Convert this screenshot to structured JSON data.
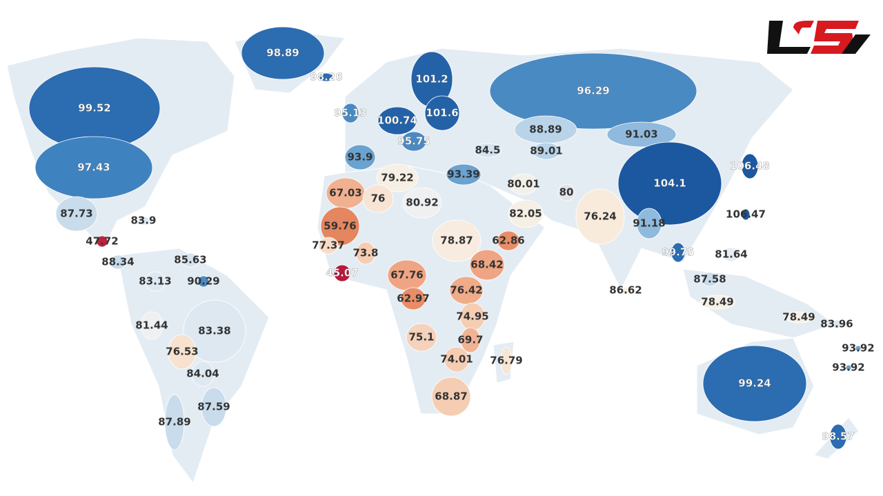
{
  "map": {
    "labels": [
      {
        "value": 98.89,
        "color": "#2c6cb0"
      },
      {
        "value": 98.26,
        "color": "#2c6cb0"
      },
      {
        "value": 99.52,
        "color": "#2c6cb0"
      },
      {
        "value": 97.43,
        "color": "#3f82c0"
      },
      {
        "value": 101.2,
        "color": "#2462a8"
      },
      {
        "value": 96.29,
        "color": "#4a8ac3"
      },
      {
        "value": 95.13,
        "color": "#4a8ac3"
      },
      {
        "value": 101.6,
        "color": "#2462a8"
      },
      {
        "value": 100.74,
        "color": "#2462a8"
      },
      {
        "value": 95.75,
        "color": "#4a8ac3"
      },
      {
        "value": 88.89,
        "color": "#b9d3e8"
      },
      {
        "value": 91.03,
        "color": "#8fbadd"
      },
      {
        "value": 84.5,
        "color": "#d4e3ef"
      },
      {
        "value": 89.01,
        "color": "#b9d3e8"
      },
      {
        "value": 93.9,
        "color": "#6aa2d0"
      },
      {
        "value": 106.48,
        "color": "#1c58a0"
      },
      {
        "value": 104.1,
        "color": "#1c58a0"
      },
      {
        "value": 93.39,
        "color": "#6aa2d0"
      },
      {
        "value": 79.22,
        "color": "#f6efe3"
      },
      {
        "value": 80.01,
        "color": "#f3f0ea"
      },
      {
        "value": 80,
        "color": "#e1e4e8"
      },
      {
        "value": 67.03,
        "color": "#f1b08f"
      },
      {
        "value": 76,
        "color": "#f7e4d4"
      },
      {
        "value": 80.92,
        "color": "#eef0f1"
      },
      {
        "value": 82.05,
        "color": "#f5efe5"
      },
      {
        "value": 76.24,
        "color": "#f8ebdc"
      },
      {
        "value": 87.73,
        "color": "#c8dcec"
      },
      {
        "value": 83.9,
        "color": "#dce7f0"
      },
      {
        "value": 106.47,
        "color": "#1c58a0"
      },
      {
        "value": 91.18,
        "color": "#8fbadd"
      },
      {
        "value": 59.76,
        "color": "#e4865f"
      },
      {
        "value": 47.72,
        "color": "#c0223b"
      },
      {
        "value": 62.86,
        "color": "#e98d66"
      },
      {
        "value": 78.87,
        "color": "#f7ecdf"
      },
      {
        "value": 77.37,
        "color": "#f6dcc7"
      },
      {
        "value": 88.34,
        "color": "#c8dcec"
      },
      {
        "value": 73.8,
        "color": "#f5cdb3"
      },
      {
        "value": 99.75,
        "color": "#2c6cb0"
      },
      {
        "value": 81.64,
        "color": "#e8eef3"
      },
      {
        "value": 85.63,
        "color": "#d4e3ef"
      },
      {
        "value": 68.42,
        "color": "#efa583"
      },
      {
        "value": 45.07,
        "color": "#b8183a"
      },
      {
        "value": 67.76,
        "color": "#efa583"
      },
      {
        "value": 83.13,
        "color": "#dde8f1"
      },
      {
        "value": 90.29,
        "color": "#4a8ac3"
      },
      {
        "value": 87.58,
        "color": "#c8dcec"
      },
      {
        "value": 86.62,
        "color": "#f6efe3"
      },
      {
        "value": 76.42,
        "color": "#f0ab89"
      },
      {
        "value": 62.97,
        "color": "#e98d66"
      },
      {
        "value": 78.49,
        "color": "#f6f1e6"
      },
      {
        "value": 78.49,
        "color": "#f6f1e6"
      },
      {
        "value": 81.44,
        "color": "#eef0f1"
      },
      {
        "value": 74.95,
        "color": "#f5cdb3"
      },
      {
        "value": 83.38,
        "color": "#dde8f1"
      },
      {
        "value": 83.96,
        "color": "#dde8f1"
      },
      {
        "value": 75.1,
        "color": "#f5d2bb"
      },
      {
        "value": 69.7,
        "color": "#f0b495"
      },
      {
        "value": 93.92,
        "color": "#6aa2d0"
      },
      {
        "value": 76.53,
        "color": "#f6e2cf"
      },
      {
        "value": 74.01,
        "color": "#f5cdb3"
      },
      {
        "value": 76.79,
        "color": "#f6e6d5"
      },
      {
        "value": 93.92,
        "color": "#6aa2d0"
      },
      {
        "value": 84.04,
        "color": "#dde8f1"
      },
      {
        "value": 99.24,
        "color": "#2c6cb0"
      },
      {
        "value": 87.59,
        "color": "#c8dcec"
      },
      {
        "value": 68.87,
        "color": "#f5cdb3"
      },
      {
        "value": 87.89,
        "color": "#c8dcec"
      },
      {
        "value": 98.57,
        "color": "#2c6cb0"
      }
    ]
  }
}
